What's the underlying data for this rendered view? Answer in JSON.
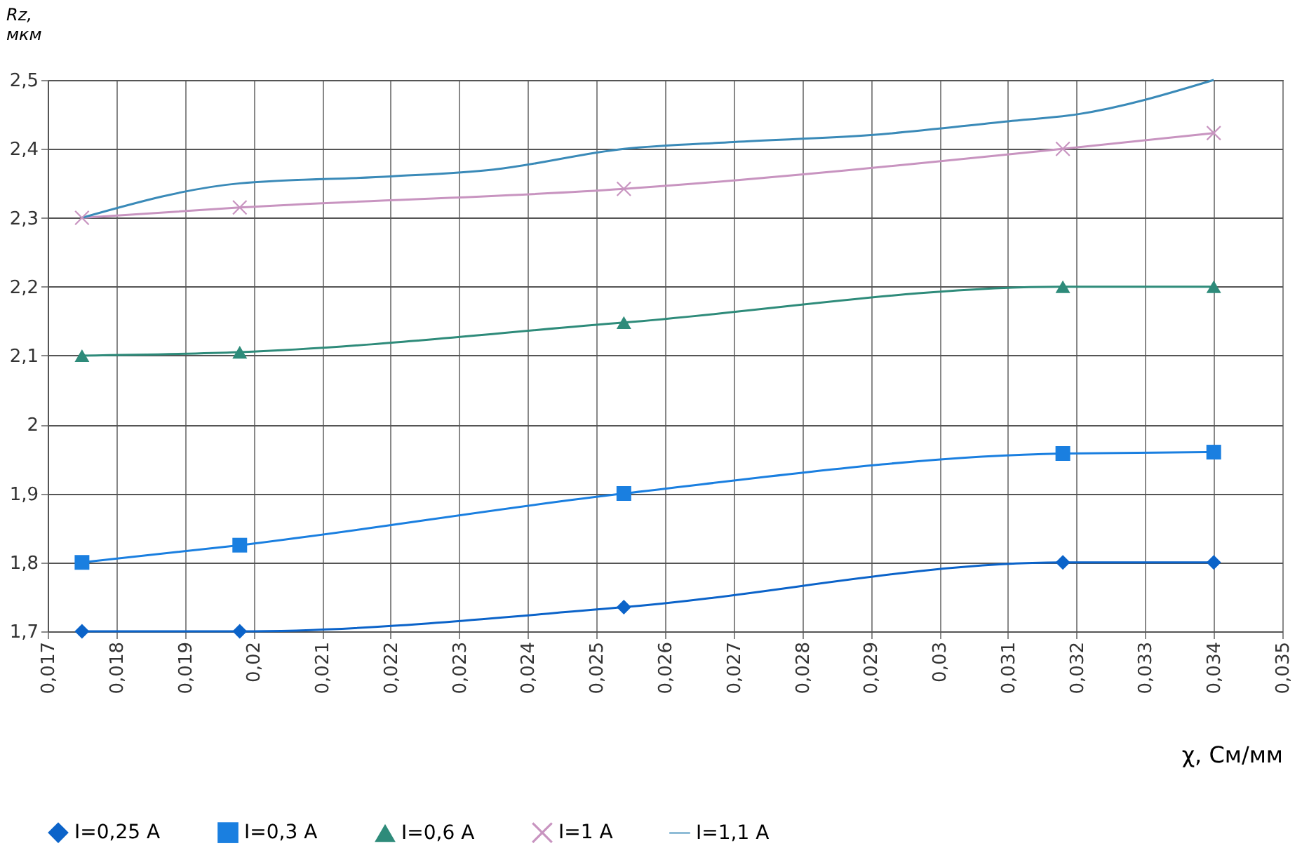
{
  "chart_data": {
    "type": "line",
    "ylabel": "Rz, мкм",
    "xlabel": "χ, См/мм",
    "x": [
      0.0175,
      0.0198,
      0.0254,
      0.0318,
      0.034
    ],
    "series": [
      {
        "name": "I=0,25 A",
        "color": "#0b63c9",
        "marker": "diamond",
        "values": [
          1.7,
          1.7,
          1.735,
          1.8,
          1.8
        ]
      },
      {
        "name": "I=0,3 A",
        "color": "#1a7fe0",
        "marker": "square",
        "values": [
          1.8,
          1.825,
          1.9,
          1.958,
          1.96
        ]
      },
      {
        "name": "I=0,6 A",
        "color": "#2e8b7a",
        "marker": "triangle",
        "values": [
          2.1,
          2.105,
          2.148,
          2.2,
          2.2
        ]
      },
      {
        "name": "I=1 A",
        "color": "#c894c0",
        "marker": "cross",
        "values": [
          2.3,
          2.315,
          2.342,
          2.4,
          2.423
        ]
      },
      {
        "name": "I=1,1 A",
        "color": "#3a8ab8",
        "marker": "none",
        "x": [
          0.0175,
          0.0198,
          0.022,
          0.0235,
          0.0254,
          0.027,
          0.029,
          0.031,
          0.032,
          0.034
        ],
        "values": [
          2.3,
          2.35,
          2.36,
          2.37,
          2.4,
          2.41,
          2.42,
          2.44,
          2.45,
          2.5
        ]
      }
    ],
    "xlim": [
      0.017,
      0.035
    ],
    "xticks": [
      {
        "value": 0.017,
        "label": "0,017"
      },
      {
        "value": 0.018,
        "label": "0,018"
      },
      {
        "value": 0.019,
        "label": "0,019"
      },
      {
        "value": 0.02,
        "label": "0,02"
      },
      {
        "value": 0.021,
        "label": "0,021"
      },
      {
        "value": 0.022,
        "label": "0,022"
      },
      {
        "value": 0.023,
        "label": "0,023"
      },
      {
        "value": 0.024,
        "label": "0,024"
      },
      {
        "value": 0.025,
        "label": "0,025"
      },
      {
        "value": 0.026,
        "label": "0,026"
      },
      {
        "value": 0.027,
        "label": "0,027"
      },
      {
        "value": 0.028,
        "label": "0,028"
      },
      {
        "value": 0.029,
        "label": "0,029"
      },
      {
        "value": 0.03,
        "label": "0,03"
      },
      {
        "value": 0.031,
        "label": "0,031"
      },
      {
        "value": 0.032,
        "label": "0,032"
      },
      {
        "value": 0.033,
        "label": "0,033"
      },
      {
        "value": 0.034,
        "label": "0,034"
      },
      {
        "value": 0.035,
        "label": "0,035"
      }
    ],
    "ylim": [
      1.7,
      2.5
    ],
    "yticks": [
      {
        "value": 1.7,
        "label": "1,7"
      },
      {
        "value": 1.8,
        "label": "1,8"
      },
      {
        "value": 1.9,
        "label": "1,9"
      },
      2,
      {
        "value": 2.1,
        "label": "2,1"
      },
      {
        "value": 2.2,
        "label": "2,2"
      },
      {
        "value": 2.3,
        "label": "2,3"
      },
      {
        "value": 2.4,
        "label": "2,4"
      },
      {
        "value": 2.5,
        "label": "2,5"
      }
    ],
    "grid": true,
    "legend": "bottom",
    "line_style": "solid"
  }
}
